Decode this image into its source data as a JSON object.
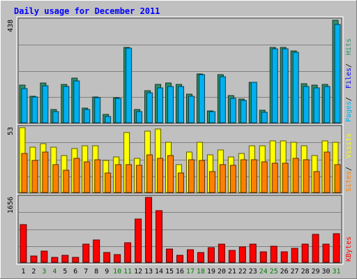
{
  "chart_data": {
    "type": "bar",
    "title": "Daily usage for December 2011",
    "days": [
      "1",
      "2",
      "3",
      "4",
      "5",
      "6",
      "7",
      "8",
      "9",
      "10",
      "11",
      "12",
      "13",
      "14",
      "15",
      "16",
      "17",
      "18",
      "19",
      "20",
      "21",
      "22",
      "23",
      "24",
      "25",
      "26",
      "27",
      "28",
      "29",
      "30",
      "31"
    ],
    "weekend_days": [
      "3",
      "4",
      "10",
      "11",
      "17",
      "18",
      "24",
      "25",
      "31"
    ],
    "panels": [
      {
        "id": "top",
        "scale_max_label": "438",
        "ymax": 438,
        "series": [
          {
            "name": "Hits",
            "color": "#2f8f68",
            "values": [
              160,
              112,
              171,
              58,
              164,
              190,
              64,
              111,
              37,
              108,
              322,
              58,
              138,
              163,
              169,
              164,
              123,
              209,
              51,
              206,
              115,
              102,
              174,
              53,
              323,
              323,
              306,
              168,
              160,
              165,
              438
            ]
          },
          {
            "name": "Pages",
            "color": "#00b0f0",
            "values": [
              146,
              111,
              158,
              49,
              154,
              179,
              57,
              108,
              27,
              105,
              318,
              48,
              127,
              149,
              156,
              154,
              114,
              205,
              47,
              198,
              103,
              95,
              172,
              44,
              317,
              317,
              300,
              156,
              150,
              155,
              420
            ]
          },
          {
            "name": "Files",
            "color": "#1c1cff",
            "values": []
          }
        ],
        "legend": [
          "Pages",
          "Files",
          "Hits"
        ]
      },
      {
        "id": "mid",
        "scale_max_label": "53",
        "ymax": 53,
        "series": [
          {
            "name": "Visits",
            "color": "#ffff00",
            "values": [
              53,
              37,
              40,
              37,
              30,
              36,
              38,
              38,
              26,
              29,
              49,
              28,
              50,
              52,
              41,
              23,
              33,
              41,
              31,
              35,
              29,
              32,
              38,
              38,
              42,
              42,
              41,
              38,
              30,
              42,
              41
            ]
          },
          {
            "name": "Sites",
            "color": "#ff8000",
            "values": [
              32,
              26,
              33,
              23,
              18,
              28,
              25,
              27,
              16,
              23,
              23,
              22,
              31,
              28,
              30,
              16,
              27,
              26,
              17,
              23,
              22,
              27,
              27,
              25,
              24,
              24,
              28,
              27,
              17,
              33,
              23
            ]
          }
        ],
        "legend": [
          "Sites",
          "Visits"
        ]
      },
      {
        "id": "bottom",
        "scale_max_label": "1656",
        "ymax": 1656,
        "series": [
          {
            "name": "KBytes",
            "color": "#ff0000",
            "values": [
              958,
              154,
              280,
              116,
              175,
              129,
              462,
              562,
              255,
              194,
              502,
              1104,
              1656,
              1315,
              341,
              186,
              325,
              248,
              378,
              462,
              294,
              388,
              469,
              265,
              418,
              262,
              361,
              465,
              711,
              459,
              738
            ]
          }
        ],
        "legend": [
          "KBytes"
        ]
      }
    ]
  }
}
